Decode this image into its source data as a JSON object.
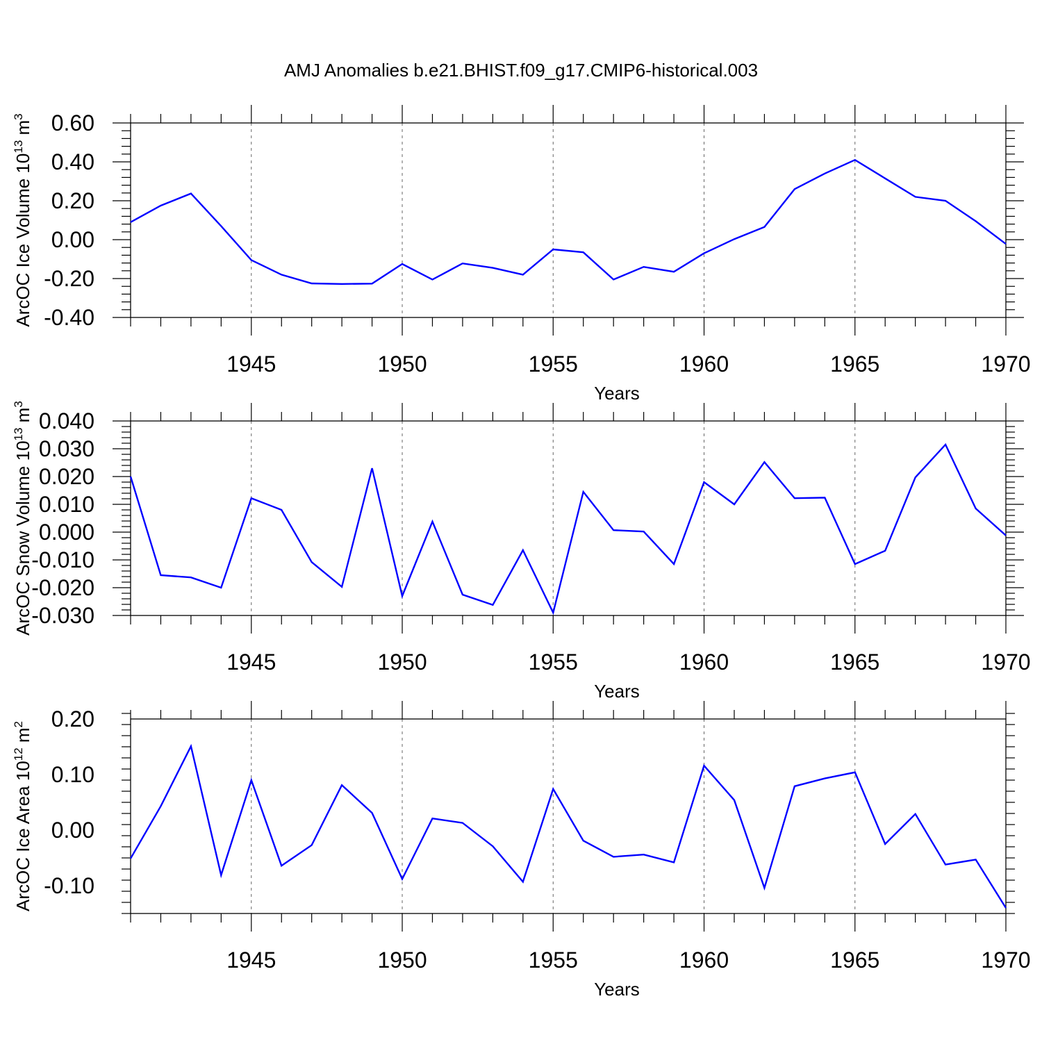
{
  "chart_data": {
    "title": "AMJ Anomalies b.e21.BHIST.f09_g17.CMIP6-historical.003",
    "panels": [
      {
        "type": "line",
        "ylabel_prefix": "ArcOC Ice Volume 10",
        "ylabel_exp": "13",
        "ylabel_unit": " m",
        "ylabel_unit_exp": "3",
        "xlabel": "Years",
        "xlim": [
          1941,
          1970
        ],
        "ylim": [
          -0.4,
          0.6
        ],
        "yticks": [
          -0.4,
          -0.2,
          0.0,
          0.2,
          0.4,
          0.6
        ],
        "ytick_labels": [
          "-0.40",
          "-0.20",
          "0.00",
          "0.20",
          "0.40",
          "0.60"
        ],
        "xticks": [
          1945,
          1950,
          1955,
          1960,
          1965,
          1970
        ],
        "xtick_labels": [
          "1945",
          "1950",
          "1955",
          "1960",
          "1965",
          "1970"
        ],
        "color": "#0000ff",
        "x": [
          1941,
          1942,
          1943,
          1944,
          1945,
          1946,
          1947,
          1948,
          1949,
          1950,
          1951,
          1952,
          1953,
          1954,
          1955,
          1956,
          1957,
          1958,
          1959,
          1960,
          1961,
          1962,
          1963,
          1964,
          1965,
          1966,
          1967,
          1968,
          1969,
          1970
        ],
        "values": [
          0.09,
          0.175,
          0.237,
          0.07,
          -0.105,
          -0.18,
          -0.225,
          -0.228,
          -0.226,
          -0.125,
          -0.205,
          -0.122,
          -0.145,
          -0.18,
          -0.05,
          -0.065,
          -0.205,
          -0.14,
          -0.165,
          -0.07,
          0.003,
          0.065,
          0.26,
          0.34,
          0.41,
          0.315,
          0.22,
          0.2,
          0.095,
          -0.022
        ]
      },
      {
        "type": "line",
        "ylabel_prefix": "ArcOC Snow Volume 10",
        "ylabel_exp": "13",
        "ylabel_unit": " m",
        "ylabel_unit_exp": "3",
        "xlabel": "Years",
        "xlim": [
          1941,
          1970
        ],
        "ylim": [
          -0.03,
          0.04
        ],
        "yticks": [
          -0.03,
          -0.02,
          -0.01,
          0.0,
          0.01,
          0.02,
          0.03,
          0.04
        ],
        "ytick_labels": [
          "-0.030",
          "-0.020",
          "-0.010",
          "0.000",
          "0.010",
          "0.020",
          "0.030",
          "0.040"
        ],
        "xticks": [
          1945,
          1950,
          1955,
          1960,
          1965,
          1970
        ],
        "xtick_labels": [
          "1945",
          "1950",
          "1955",
          "1960",
          "1965",
          "1970"
        ],
        "color": "#0000ff",
        "x": [
          1941,
          1942,
          1943,
          1944,
          1945,
          1946,
          1947,
          1948,
          1949,
          1950,
          1951,
          1952,
          1953,
          1954,
          1955,
          1956,
          1957,
          1958,
          1959,
          1960,
          1961,
          1962,
          1963,
          1964,
          1965,
          1966,
          1967,
          1968,
          1969,
          1970
        ],
        "values": [
          0.02,
          -0.0155,
          -0.0163,
          -0.02,
          0.0122,
          0.008,
          -0.0108,
          -0.0197,
          0.023,
          -0.023,
          0.0038,
          -0.0225,
          -0.0262,
          -0.0065,
          -0.029,
          0.0145,
          0.0007,
          0.0002,
          -0.0115,
          0.018,
          0.01,
          0.0252,
          0.0122,
          0.0124,
          -0.0115,
          -0.0067,
          0.0197,
          0.0315,
          0.0085,
          -0.0012
        ]
      },
      {
        "type": "line",
        "ylabel_prefix": "ArcOC Ice Area 10",
        "ylabel_exp": "12",
        "ylabel_unit": " m",
        "ylabel_unit_exp": "2",
        "xlabel": "Years",
        "xlim": [
          1941,
          1970
        ],
        "ylim": [
          -0.15,
          0.2
        ],
        "yticks": [
          -0.1,
          0.0,
          0.1,
          0.2
        ],
        "ytick_labels": [
          "-0.10",
          "0.00",
          "0.10",
          "0.20"
        ],
        "xticks": [
          1945,
          1950,
          1955,
          1960,
          1965,
          1970
        ],
        "xtick_labels": [
          "1945",
          "1950",
          "1955",
          "1960",
          "1965",
          "1970"
        ],
        "color": "#0000ff",
        "x": [
          1941,
          1942,
          1943,
          1944,
          1945,
          1946,
          1947,
          1948,
          1949,
          1950,
          1951,
          1952,
          1953,
          1954,
          1955,
          1956,
          1957,
          1958,
          1959,
          1960,
          1961,
          1962,
          1963,
          1964,
          1965,
          1966,
          1967,
          1968,
          1969,
          1970
        ],
        "values": [
          -0.051,
          0.043,
          0.151,
          -0.081,
          0.09,
          -0.064,
          -0.027,
          0.081,
          0.031,
          -0.088,
          0.021,
          0.013,
          -0.029,
          -0.093,
          0.074,
          -0.019,
          -0.048,
          -0.044,
          -0.058,
          0.116,
          0.054,
          -0.104,
          0.079,
          0.093,
          0.104,
          -0.025,
          0.029,
          -0.062,
          -0.053,
          -0.14
        ]
      }
    ]
  }
}
